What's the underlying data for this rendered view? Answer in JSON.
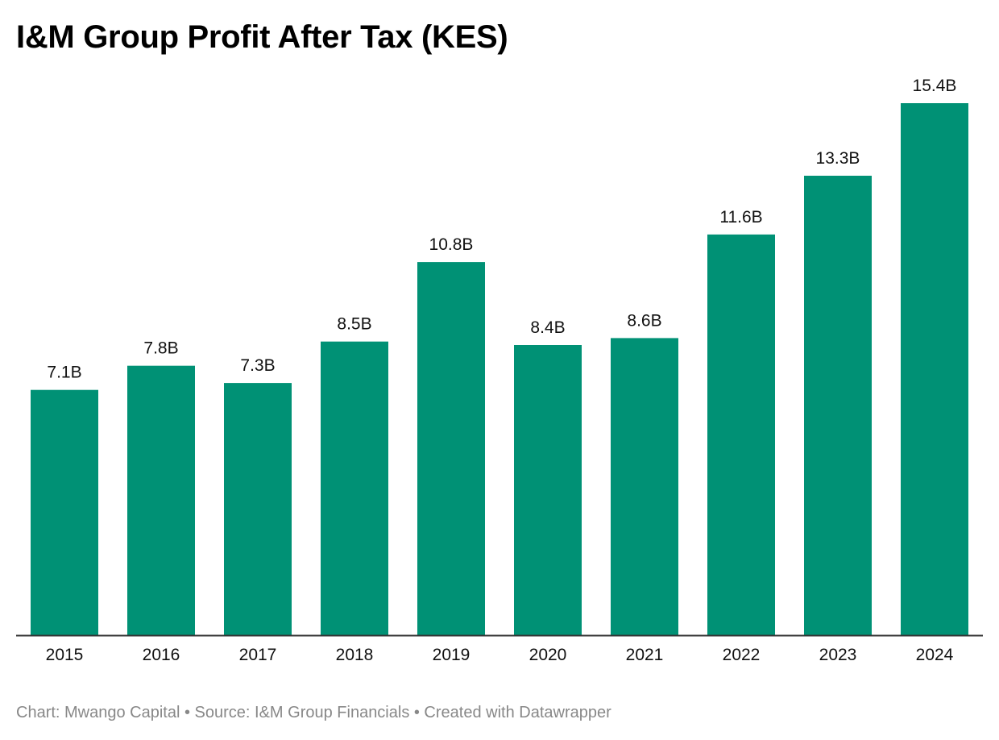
{
  "chart_data": {
    "type": "bar",
    "title": "I&M Group Profit After Tax (KES)",
    "categories": [
      "2015",
      "2016",
      "2017",
      "2018",
      "2019",
      "2020",
      "2021",
      "2022",
      "2023",
      "2024"
    ],
    "values": [
      7.1,
      7.8,
      7.3,
      8.5,
      10.8,
      8.4,
      8.6,
      11.6,
      13.3,
      15.4
    ],
    "value_labels": [
      "7.1B",
      "7.8B",
      "7.3B",
      "8.5B",
      "10.8B",
      "8.4B",
      "8.6B",
      "11.6B",
      "13.3B",
      "15.4B"
    ],
    "unit": "B",
    "xlabel": "",
    "ylabel": "",
    "ylim": [
      0,
      15.4
    ],
    "grid": false,
    "legend": "none",
    "bar_color": "#009175",
    "axis_color": "#333333"
  },
  "footer": {
    "text": "Chart: Mwango Capital • Source: I&M Group Financials • Created with Datawrapper"
  }
}
